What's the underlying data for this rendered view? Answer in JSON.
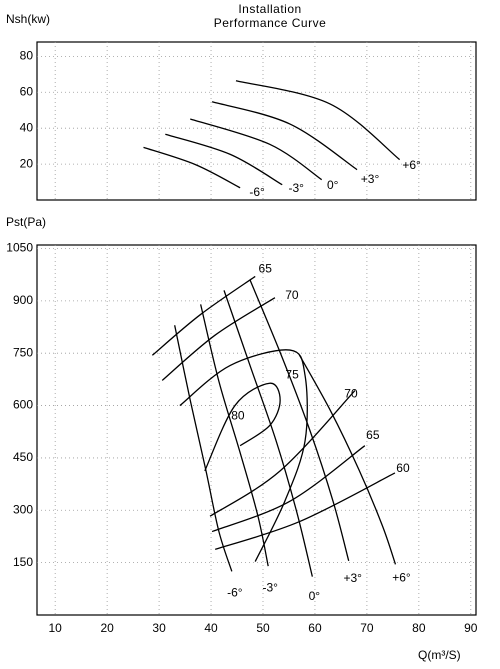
{
  "chart_data": [
    {
      "type": "line",
      "title": "Installation Performance Curve",
      "ylabel": "Nsh(kw)",
      "xlim": [
        6.5,
        91
      ],
      "ylim": [
        0,
        88
      ],
      "yticks": [
        20,
        40,
        60,
        80
      ],
      "grid": true,
      "series": [
        {
          "name": "-6°",
          "color": "#000000",
          "x": [
            27,
            37,
            45.6
          ],
          "values": [
            29.3,
            19.7,
            6.8
          ]
        },
        {
          "name": "-3°",
          "color": "#000000",
          "x": [
            31.2,
            43.7,
            53.7
          ],
          "values": [
            36.6,
            25.4,
            8.5
          ]
        },
        {
          "name": "0°",
          "color": "#000000",
          "x": [
            36,
            51.3,
            61.3
          ],
          "values": [
            45.1,
            31,
            11.3
          ]
        },
        {
          "name": "+3°",
          "color": "#000000",
          "x": [
            40.2,
            55.2,
            68.1
          ],
          "values": [
            54.7,
            42.3,
            16.9
          ]
        },
        {
          "name": "+6°",
          "color": "#000000",
          "x": [
            44.8,
            62.9,
            76.3
          ],
          "values": [
            66.4,
            53.5,
            22.5
          ]
        }
      ]
    },
    {
      "type": "line",
      "ylabel": "Pst(Pa)",
      "xlabel": "Q(m³/S)",
      "xlim": [
        6.5,
        91
      ],
      "ylim": [
        0,
        1060
      ],
      "xticks": [
        10,
        20,
        30,
        40,
        50,
        60,
        70,
        80,
        90
      ],
      "yticks": [
        150,
        300,
        450,
        600,
        750,
        900,
        1050
      ],
      "grid": true,
      "series": [
        {
          "name": "-6°",
          "color": "#000000",
          "x": [
            33,
            36,
            39,
            41.5,
            44
          ],
          "values": [
            830,
            615,
            415,
            240,
            125
          ]
        },
        {
          "name": "-3°",
          "color": "#000000",
          "x": [
            38,
            41.5,
            45.5,
            49,
            51
          ],
          "values": [
            890,
            670,
            470,
            285,
            140
          ]
        },
        {
          "name": "0°",
          "color": "#000000",
          "x": [
            42.5,
            47.5,
            52.5,
            56.5,
            59.5
          ],
          "values": [
            930,
            715,
            500,
            295,
            110
          ]
        },
        {
          "name": "+3°",
          "color": "#000000",
          "x": [
            47.5,
            53.5,
            59,
            63.5,
            66.5
          ],
          "values": [
            960,
            745,
            530,
            325,
            155
          ]
        },
        {
          "name": "+6°",
          "color": "#000000",
          "x": [
            57,
            63,
            68.5,
            73,
            75.5
          ],
          "values": [
            745,
            585,
            415,
            255,
            145
          ]
        },
        {
          "name": "65",
          "color": "#000000",
          "x": [
            28.7,
            37.9,
            48.5
          ],
          "values": [
            744,
            860,
            970
          ]
        },
        {
          "name": "70",
          "color": "#000000",
          "x": [
            30.6,
            40.8,
            52.3
          ],
          "values": [
            672,
            802,
            909
          ]
        },
        {
          "name": "75",
          "color": "#000000",
          "x": [
            34,
            43.7,
            55.2,
            58.1,
            58.1,
            54.2,
            48.5
          ],
          "values": [
            600,
            715,
            759,
            686,
            499,
            326,
            153
          ]
        },
        {
          "name": "80",
          "color": "#000000",
          "x": [
            38.8,
            44.6,
            51.3,
            53.3,
            51.3,
            45.6
          ],
          "values": [
            413,
            600,
            664,
            615,
            543,
            485
          ]
        },
        {
          "name": "70",
          "color": "#000000",
          "x": [
            39.8,
            53.3,
            67.7
          ],
          "values": [
            283,
            413,
            643
          ]
        },
        {
          "name": "65",
          "color": "#000000",
          "x": [
            40.2,
            55.2,
            69.6
          ],
          "values": [
            239,
            326,
            485
          ]
        },
        {
          "name": "60",
          "color": "#000000",
          "x": [
            40.8,
            57.1,
            75.4
          ],
          "values": [
            188,
            268,
            407
          ]
        }
      ]
    }
  ]
}
